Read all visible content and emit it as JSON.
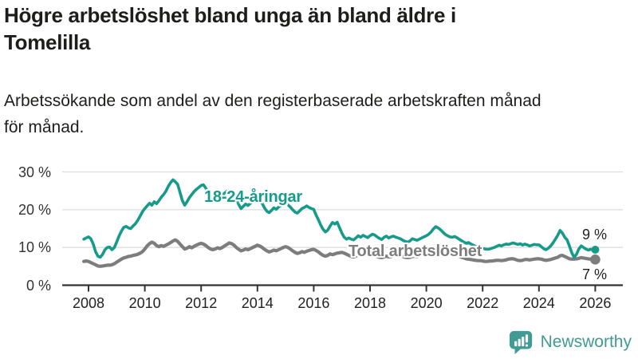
{
  "header": {
    "title_lines": [
      "Högre arbetslöshet bland unga än bland äldre i",
      "Tomelilla"
    ],
    "subtitle_lines": [
      "Arbetssökande som andel av den registerbaserade arbetskraften månad",
      "för månad."
    ]
  },
  "branding": {
    "logo_text": "Newsworthy",
    "logo_color": "#3f9b94"
  },
  "colors": {
    "youth_teal": "#169b8b",
    "total_gray": "#7d7d7d",
    "grid": "#dedede",
    "axis": "#333333",
    "tick_label": "#222222",
    "text": "#1d1d1b"
  },
  "chart_data": {
    "type": "line",
    "title": "Högre arbetslöshet bland unga än bland äldre i Tomelilla",
    "subtitle": "Arbetssökande som andel av den registerbaserade arbetskraften månad för månad.",
    "xlabel": "",
    "ylabel": "",
    "unit": "%",
    "frequency": "monthly",
    "start": "2007-11",
    "end": "2026-01",
    "grid": true,
    "ylim": [
      0,
      31
    ],
    "x_ticks": [
      2008,
      2010,
      2012,
      2014,
      2016,
      2018,
      2020,
      2022,
      2024,
      2026
    ],
    "y_ticks": [
      {
        "value": 0,
        "label": "0 %"
      },
      {
        "value": 10,
        "label": "10 %"
      },
      {
        "value": 20,
        "label": "20 %"
      },
      {
        "value": 30,
        "label": "30 %"
      }
    ],
    "series": [
      {
        "name": "18-24-åringar",
        "color": "#169b8b",
        "end_label": "9 %",
        "values": [
          12.2,
          12.5,
          12.8,
          12.3,
          10.9,
          8.9,
          7.7,
          7.4,
          8.2,
          9.4,
          10.0,
          10.1,
          9.4,
          10.0,
          11.4,
          13.0,
          14.3,
          15.3,
          15.6,
          15.2,
          15.0,
          15.7,
          16.3,
          17.2,
          18.3,
          19.5,
          20.3,
          21.0,
          21.7,
          21.2,
          22.1,
          21.6,
          22.4,
          23.3,
          24.0,
          24.9,
          26.2,
          27.2,
          27.9,
          27.4,
          26.7,
          24.6,
          22.4,
          21.2,
          22.1,
          23.2,
          24.0,
          24.8,
          25.4,
          25.9,
          26.4,
          26.6,
          25.7,
          24.4,
          23.6,
          23.0,
          23.5,
          24.0,
          23.4,
          23.8,
          24.4,
          24.9,
          25.1,
          24.8,
          24.0,
          22.8,
          21.4,
          20.3,
          20.9,
          21.5,
          21.1,
          21.7,
          22.3,
          22.7,
          22.9,
          22.5,
          21.7,
          20.5,
          19.6,
          19.2,
          19.8,
          20.5,
          20.1,
          20.7,
          21.1,
          21.5,
          21.7,
          21.3,
          20.7,
          20.0,
          19.4,
          19.1,
          19.7,
          20.3,
          20.6,
          21.0,
          20.6,
          20.3,
          20.1,
          18.6,
          17.3,
          15.9,
          14.8,
          14.1,
          14.6,
          15.7,
          16.6,
          16.2,
          16.7,
          15.2,
          13.8,
          12.7,
          12.2,
          12.5,
          12.2,
          12.0,
          12.5,
          13.1,
          12.7,
          13.2,
          12.9,
          12.6,
          13.1,
          13.5,
          13.3,
          12.8,
          12.4,
          12.1,
          12.7,
          13.0,
          12.5,
          12.8,
          13.0,
          12.7,
          12.5,
          12.3,
          11.9,
          11.6,
          11.4,
          11.7,
          12.3,
          12.1,
          11.9,
          12.2,
          12.5,
          12.8,
          13.1,
          13.5,
          14.1,
          14.9,
          15.5,
          15.2,
          14.7,
          14.1,
          13.5,
          13.1,
          12.8,
          12.7,
          12.9,
          12.6,
          12.2,
          11.8,
          11.4,
          11.1,
          11.3,
          10.9,
          10.6,
          10.3,
          10.1,
          10.0,
          9.8,
          9.6,
          9.5,
          9.6,
          9.8,
          10.0,
          10.3,
          10.6,
          10.4,
          10.7,
          10.9,
          10.8,
          11.0,
          11.2,
          11.0,
          10.8,
          11.0,
          10.6,
          10.9,
          10.7,
          10.4,
          10.6,
          10.8,
          10.7,
          10.7,
          10.2,
          9.7,
          9.4,
          9.8,
          10.4,
          11.2,
          12.2,
          13.2,
          14.5,
          13.8,
          12.7,
          12.0,
          10.4,
          8.6,
          7.4,
          8.2,
          9.6,
          10.4,
          10.0,
          9.6,
          9.3,
          9.5,
          9.4,
          9.4
        ]
      },
      {
        "name": "Total arbetslöshet",
        "color": "#7d7d7d",
        "end_label": "7 %",
        "values": [
          6.3,
          6.4,
          6.3,
          6.0,
          5.7,
          5.4,
          5.1,
          5.0,
          5.1,
          5.2,
          5.3,
          5.3,
          5.4,
          5.7,
          6.1,
          6.5,
          6.9,
          7.2,
          7.4,
          7.6,
          7.7,
          7.9,
          8.0,
          8.2,
          8.5,
          8.9,
          9.6,
          10.4,
          11.0,
          11.4,
          11.1,
          10.5,
          10.2,
          10.5,
          10.3,
          10.6,
          10.9,
          11.3,
          11.7,
          12.0,
          11.6,
          10.9,
          10.2,
          9.6,
          9.8,
          10.2,
          9.9,
          10.3,
          10.6,
          10.9,
          11.1,
          10.9,
          10.5,
          10.0,
          9.6,
          9.4,
          9.6,
          9.9,
          9.7,
          10.0,
          10.4,
          10.8,
          11.2,
          11.0,
          10.6,
          10.0,
          9.5,
          9.1,
          9.3,
          9.6,
          9.4,
          9.7,
          10.0,
          10.3,
          10.6,
          10.4,
          10.0,
          9.5,
          9.1,
          8.8,
          9.0,
          9.3,
          9.1,
          9.4,
          9.7,
          10.0,
          10.2,
          10.0,
          9.6,
          9.1,
          8.7,
          8.4,
          8.6,
          8.9,
          8.7,
          9.0,
          9.2,
          9.4,
          9.5,
          9.2,
          8.8,
          8.3,
          7.9,
          7.7,
          7.9,
          8.3,
          8.1,
          8.3,
          8.5,
          8.6,
          8.7,
          8.5,
          8.2,
          7.9,
          7.6,
          7.5,
          7.7,
          8.0,
          7.8,
          8.0,
          8.2,
          8.3,
          8.4,
          8.2,
          7.9,
          7.6,
          7.4,
          7.3,
          7.5,
          7.7,
          7.5,
          7.6,
          7.8,
          7.9,
          8.0,
          7.8,
          7.6,
          7.4,
          7.3,
          7.4,
          7.6,
          7.7,
          7.6,
          7.8,
          8.0,
          8.2,
          8.4,
          8.6,
          8.9,
          9.2,
          9.4,
          9.3,
          9.1,
          8.9,
          8.7,
          8.5,
          8.3,
          8.2,
          8.1,
          7.9,
          7.7,
          7.4,
          7.2,
          7.0,
          6.9,
          6.8,
          6.7,
          6.6,
          6.5,
          6.5,
          6.4,
          6.3,
          6.3,
          6.4,
          6.4,
          6.5,
          6.6,
          6.6,
          6.5,
          6.6,
          6.7,
          6.9,
          7.0,
          7.0,
          6.8,
          6.6,
          6.5,
          6.6,
          6.8,
          6.8,
          6.7,
          6.8,
          6.9,
          7.0,
          7.0,
          6.9,
          6.7,
          6.6,
          6.7,
          6.8,
          7.0,
          7.2,
          7.4,
          7.8,
          7.9,
          7.6,
          7.3,
          7.0,
          6.9,
          6.9,
          7.0,
          7.1,
          7.3,
          7.2,
          7.1,
          7.0,
          6.9,
          6.8,
          6.8
        ]
      }
    ]
  }
}
